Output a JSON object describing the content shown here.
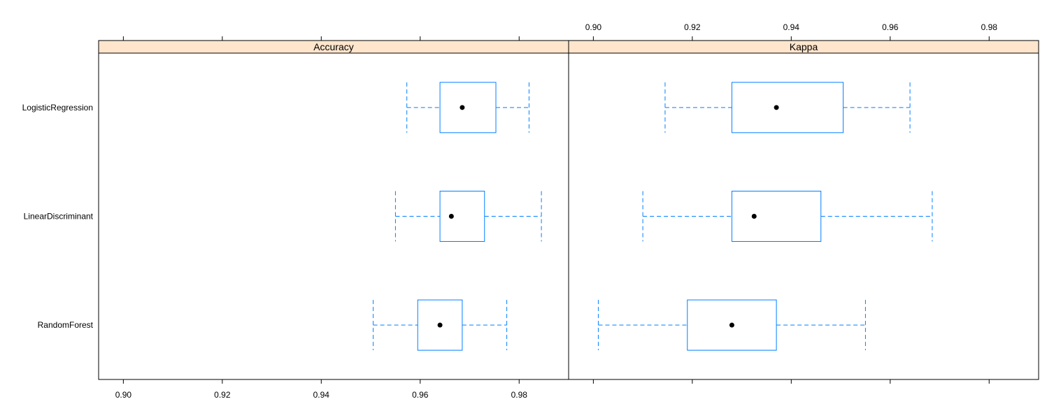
{
  "chart_data": {
    "type": "boxplot",
    "title": "",
    "strip_color": "#ffe5cc",
    "box_color": "#0080ff",
    "median_color": "#000000",
    "categories": [
      "RandomForest",
      "LinearDiscriminant",
      "LogisticRegression"
    ],
    "panels": [
      {
        "name": "Accuracy",
        "xlim": [
          0.895,
          0.99
        ],
        "ticks": [
          0.9,
          0.92,
          0.94,
          0.96,
          0.98
        ],
        "tick_labels": [
          "0.90",
          "0.92",
          "0.94",
          "0.96",
          "0.98"
        ],
        "tick_labels_position": "bottom",
        "boxes": [
          {
            "category": "RandomForest",
            "min": 0.9505,
            "q1": 0.9595,
            "median": 0.964,
            "q3": 0.9685,
            "max": 0.9775
          },
          {
            "category": "LinearDiscriminant",
            "min": 0.955,
            "q1": 0.964,
            "median": 0.9663,
            "q3": 0.973,
            "max": 0.9845
          },
          {
            "category": "LogisticRegression",
            "min": 0.9573,
            "q1": 0.964,
            "median": 0.9685,
            "q3": 0.9753,
            "max": 0.982
          }
        ]
      },
      {
        "name": "Kappa",
        "xlim": [
          0.895,
          0.99
        ],
        "ticks": [
          0.9,
          0.92,
          0.94,
          0.96,
          0.98
        ],
        "tick_labels": [
          "0.90",
          "0.92",
          "0.94",
          "0.96",
          "0.98"
        ],
        "tick_labels_position": "top",
        "boxes": [
          {
            "category": "RandomForest",
            "min": 0.901,
            "q1": 0.919,
            "median": 0.928,
            "q3": 0.937,
            "max": 0.955
          },
          {
            "category": "LinearDiscriminant",
            "min": 0.91,
            "q1": 0.928,
            "median": 0.9325,
            "q3": 0.946,
            "max": 0.9685
          },
          {
            "category": "LogisticRegression",
            "min": 0.9145,
            "q1": 0.928,
            "median": 0.937,
            "q3": 0.9505,
            "max": 0.964
          }
        ]
      }
    ]
  }
}
